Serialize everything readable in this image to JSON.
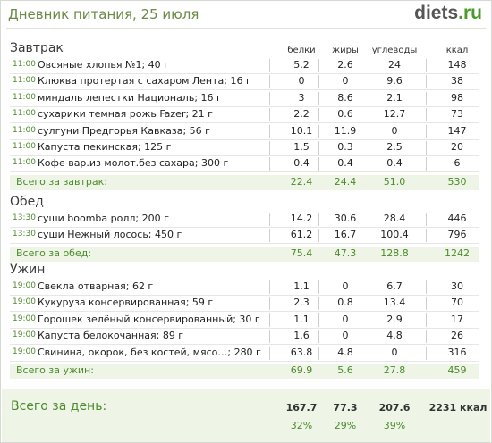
{
  "title": "Дневник питания, 25 июля",
  "logo": {
    "main": "diets",
    "suffix": ".ru"
  },
  "columns": [
    "белки",
    "жиры",
    "углеводы",
    "ккал"
  ],
  "sections": [
    {
      "title": "Завтрак",
      "rows": [
        {
          "time": "11:00",
          "name": "Овсяные хлопья №1; 40 г",
          "p": "5.2",
          "f": "2.6",
          "c": "24",
          "k": "148"
        },
        {
          "time": "11:00",
          "name": "Клюква протертая с сахаром Лента; 16 г",
          "p": "0",
          "f": "0",
          "c": "9.6",
          "k": "38"
        },
        {
          "time": "11:00",
          "name": "миндаль лепестки Националь; 16 г",
          "p": "3",
          "f": "8.6",
          "c": "2.1",
          "k": "98"
        },
        {
          "time": "11:00",
          "name": "сухарики темная рожь Fazer; 21 г",
          "p": "2.2",
          "f": "0.6",
          "c": "12.7",
          "k": "73"
        },
        {
          "time": "11:00",
          "name": "сулгуни Предгорья Кавказа; 56 г",
          "p": "10.1",
          "f": "11.9",
          "c": "0",
          "k": "147"
        },
        {
          "time": "11:00",
          "name": "Капуста пекинская; 125 г",
          "p": "1.5",
          "f": "0.3",
          "c": "2.5",
          "k": "20"
        },
        {
          "time": "11:00",
          "name": "Кофе вар.из молот.без сахара; 300 г",
          "p": "0.4",
          "f": "0.4",
          "c": "0.4",
          "k": "6"
        }
      ],
      "total": {
        "label": "Всего за завтрак:",
        "p": "22.4",
        "f": "24.4",
        "c": "51.0",
        "k": "530"
      }
    },
    {
      "title": "Обед",
      "rows": [
        {
          "time": "13:30",
          "name": "суши boomba ролл; 200 г",
          "p": "14.2",
          "f": "30.6",
          "c": "28.4",
          "k": "446"
        },
        {
          "time": "13:30",
          "name": "суши Нежный лосось; 450 г",
          "p": "61.2",
          "f": "16.7",
          "c": "100.4",
          "k": "796"
        }
      ],
      "total": {
        "label": "Всего за обед:",
        "p": "75.4",
        "f": "47.3",
        "c": "128.8",
        "k": "1242"
      }
    },
    {
      "title": "Ужин",
      "rows": [
        {
          "time": "19:00",
          "name": "Свекла отварная; 62 г",
          "p": "1.1",
          "f": "0",
          "c": "6.7",
          "k": "30"
        },
        {
          "time": "19:00",
          "name": "Кукуруза консервированная; 59 г",
          "p": "2.3",
          "f": "0.8",
          "c": "13.4",
          "k": "70"
        },
        {
          "time": "19:00",
          "name": "Горошек зелёный консервированный; 30 г",
          "p": "1.1",
          "f": "0",
          "c": "2.9",
          "k": "17"
        },
        {
          "time": "19:00",
          "name": "Капуста белокочанная; 89 г",
          "p": "1.6",
          "f": "0",
          "c": "4.8",
          "k": "26"
        },
        {
          "time": "19:00",
          "name": "Свинина, окорок, без костей, мясо…; 280 г",
          "p": "63.8",
          "f": "4.8",
          "c": "0",
          "k": "316"
        }
      ],
      "total": {
        "label": "Всего за ужин:",
        "p": "69.9",
        "f": "5.6",
        "c": "27.8",
        "k": "459"
      }
    }
  ],
  "day": {
    "label": "Всего за день:",
    "p": "167.7",
    "f": "77.3",
    "c": "207.6",
    "k": "2231 ккал",
    "pp": "32%",
    "fp": "29%",
    "cp": "39%"
  }
}
